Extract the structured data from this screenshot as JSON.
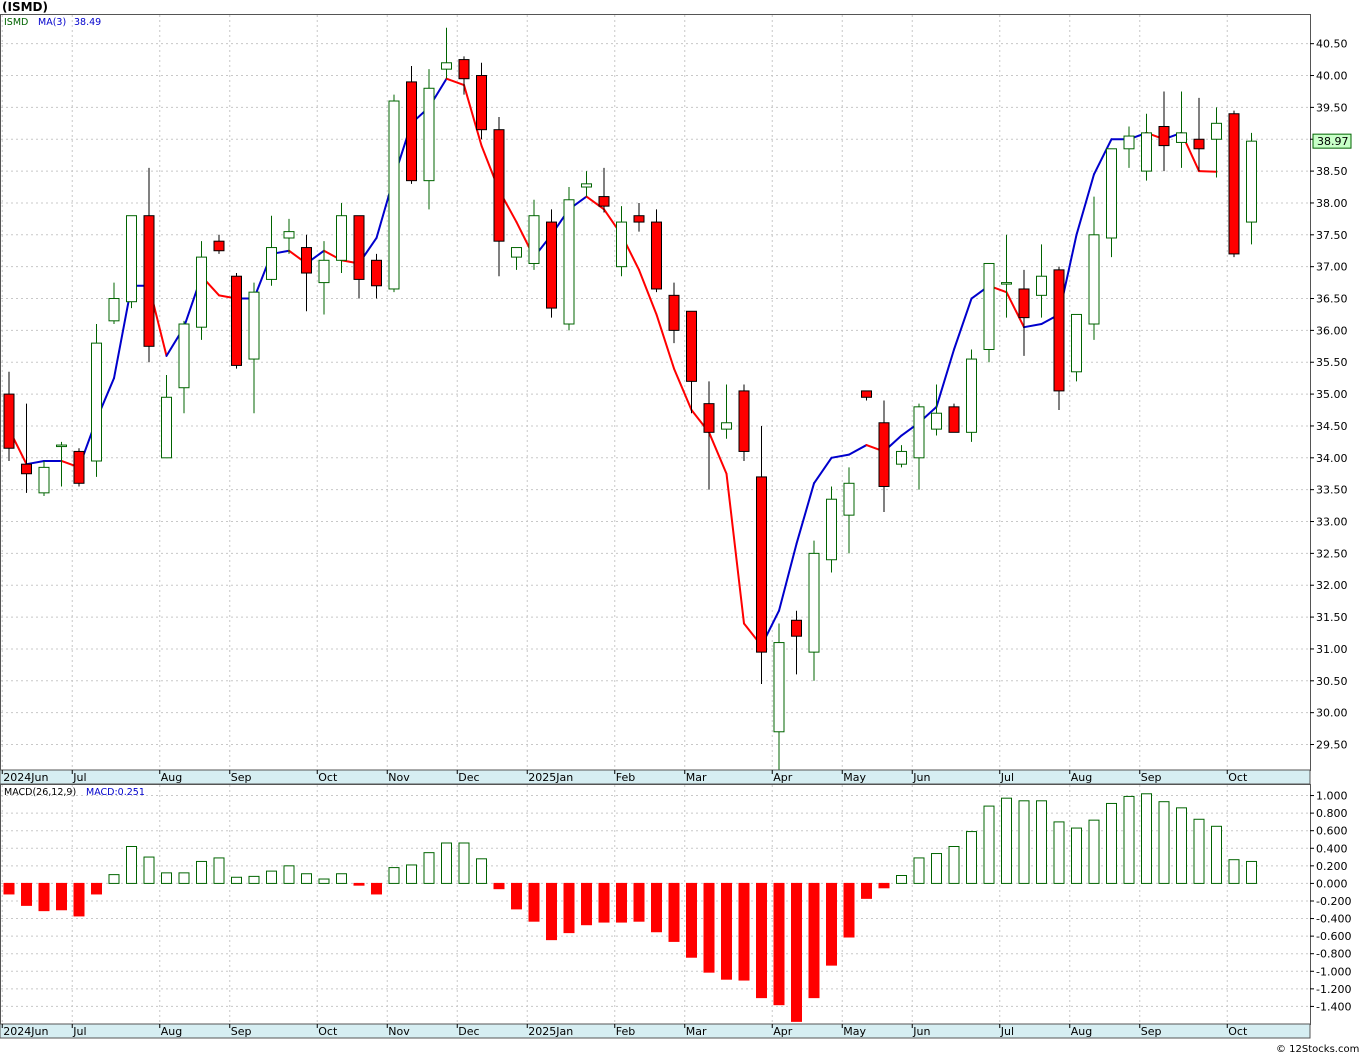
{
  "header": {
    "symbol": "(ISMD)",
    "price_legend": "ISMD",
    "ma_legend": "MA(3)",
    "ma_value": "38.49",
    "macd_legend": "MACD(26,12,9)",
    "macd_value": "MACD:0.251",
    "last_price": "38.97",
    "credit": "© 12Stocks.com"
  },
  "colors": {
    "up_candle": "#006400",
    "down_candle": "#ff0000",
    "ma_up": "#0000cc",
    "ma_down": "#ff0000",
    "axis_band": "#d6eef2",
    "grid": "#c8c8c8",
    "last_price_bg": "#c8ffc8"
  },
  "chart_data": [
    {
      "type": "candlestick",
      "title": "(ISMD)",
      "ylim": [
        29.1,
        40.95
      ],
      "y_ticks": [
        "29.50",
        "30.00",
        "30.50",
        "31.00",
        "31.50",
        "32.00",
        "32.50",
        "33.00",
        "33.50",
        "34.00",
        "34.50",
        "35.00",
        "35.50",
        "36.00",
        "36.50",
        "37.00",
        "37.50",
        "38.00",
        "38.50",
        "39.00",
        "39.50",
        "40.00",
        "40.50"
      ],
      "month_labels": [
        {
          "label": "2024Jun",
          "bar": 0
        },
        {
          "label": "Jul",
          "bar": 4
        },
        {
          "label": "Aug",
          "bar": 9
        },
        {
          "label": "Sep",
          "bar": 13
        },
        {
          "label": "Oct",
          "bar": 18
        },
        {
          "label": "Nov",
          "bar": 22
        },
        {
          "label": "Dec",
          "bar": 26
        },
        {
          "label": "2025Jan",
          "bar": 30
        },
        {
          "label": "Feb",
          "bar": 35
        },
        {
          "label": "Mar",
          "bar": 39
        },
        {
          "label": "Apr",
          "bar": 44
        },
        {
          "label": "May",
          "bar": 48
        },
        {
          "label": "Jun",
          "bar": 52
        },
        {
          "label": "Jul",
          "bar": 57
        },
        {
          "label": "Aug",
          "bar": 61
        },
        {
          "label": "Sep",
          "bar": 65
        },
        {
          "label": "Oct",
          "bar": 70
        }
      ],
      "candles": [
        {
          "o": 35.0,
          "h": 35.35,
          "l": 33.95,
          "c": 34.15
        },
        {
          "o": 33.9,
          "h": 34.85,
          "l": 33.45,
          "c": 33.75
        },
        {
          "o": 33.45,
          "h": 33.95,
          "l": 33.4,
          "c": 33.85
        },
        {
          "o": 34.2,
          "h": 34.25,
          "l": 33.55,
          "c": 34.2
        },
        {
          "o": 34.1,
          "h": 34.15,
          "l": 33.55,
          "c": 33.6
        },
        {
          "o": 33.95,
          "h": 36.1,
          "l": 33.7,
          "c": 35.8
        },
        {
          "o": 36.15,
          "h": 36.75,
          "l": 36.1,
          "c": 36.5
        },
        {
          "o": 36.45,
          "h": 37.8,
          "l": 36.35,
          "c": 37.8
        },
        {
          "o": 37.8,
          "h": 38.55,
          "l": 35.5,
          "c": 35.75
        },
        {
          "o": 34.0,
          "h": 35.3,
          "l": 34.0,
          "c": 34.95
        },
        {
          "o": 35.1,
          "h": 36.15,
          "l": 34.7,
          "c": 36.1
        },
        {
          "o": 36.05,
          "h": 37.4,
          "l": 35.85,
          "c": 37.15
        },
        {
          "o": 37.4,
          "h": 37.5,
          "l": 37.2,
          "c": 37.25
        },
        {
          "o": 36.85,
          "h": 36.9,
          "l": 35.4,
          "c": 35.45
        },
        {
          "o": 35.55,
          "h": 36.75,
          "l": 34.7,
          "c": 36.6
        },
        {
          "o": 36.8,
          "h": 37.8,
          "l": 36.7,
          "c": 37.3
        },
        {
          "o": 37.45,
          "h": 37.75,
          "l": 37.2,
          "c": 37.55
        },
        {
          "o": 37.3,
          "h": 37.5,
          "l": 36.3,
          "c": 36.9
        },
        {
          "o": 36.75,
          "h": 37.4,
          "l": 36.25,
          "c": 37.1
        },
        {
          "o": 37.1,
          "h": 38.0,
          "l": 36.9,
          "c": 37.8
        },
        {
          "o": 37.8,
          "h": 37.8,
          "l": 36.5,
          "c": 36.8
        },
        {
          "o": 37.1,
          "h": 37.2,
          "l": 36.5,
          "c": 36.7
        },
        {
          "o": 36.65,
          "h": 39.7,
          "l": 36.6,
          "c": 39.6
        },
        {
          "o": 39.9,
          "h": 40.15,
          "l": 38.3,
          "c": 38.35
        },
        {
          "o": 38.35,
          "h": 40.1,
          "l": 37.9,
          "c": 39.8
        },
        {
          "o": 40.1,
          "h": 40.75,
          "l": 39.95,
          "c": 40.2
        },
        {
          "o": 40.25,
          "h": 40.3,
          "l": 39.7,
          "c": 39.95
        },
        {
          "o": 40.0,
          "h": 40.2,
          "l": 39.0,
          "c": 39.15
        },
        {
          "o": 39.15,
          "h": 39.35,
          "l": 36.85,
          "c": 37.4
        },
        {
          "o": 37.15,
          "h": 37.3,
          "l": 36.95,
          "c": 37.3
        },
        {
          "o": 37.05,
          "h": 38.05,
          "l": 36.95,
          "c": 37.8
        },
        {
          "o": 37.7,
          "h": 37.9,
          "l": 36.2,
          "c": 36.35
        },
        {
          "o": 36.1,
          "h": 38.25,
          "l": 36.0,
          "c": 38.05
        },
        {
          "o": 38.25,
          "h": 38.5,
          "l": 38.1,
          "c": 38.3
        },
        {
          "o": 38.1,
          "h": 38.55,
          "l": 37.85,
          "c": 37.95
        },
        {
          "o": 37.0,
          "h": 37.95,
          "l": 36.85,
          "c": 37.7
        },
        {
          "o": 37.8,
          "h": 38.0,
          "l": 37.55,
          "c": 37.7
        },
        {
          "o": 37.7,
          "h": 37.9,
          "l": 36.6,
          "c": 36.65
        },
        {
          "o": 36.55,
          "h": 36.75,
          "l": 35.8,
          "c": 36.0
        },
        {
          "o": 36.3,
          "h": 36.3,
          "l": 34.7,
          "c": 35.2
        },
        {
          "o": 34.85,
          "h": 35.2,
          "l": 33.5,
          "c": 34.4
        },
        {
          "o": 34.45,
          "h": 35.15,
          "l": 34.3,
          "c": 34.55
        },
        {
          "o": 35.05,
          "h": 35.15,
          "l": 33.95,
          "c": 34.1
        },
        {
          "o": 33.7,
          "h": 34.5,
          "l": 30.45,
          "c": 30.95
        },
        {
          "o": 29.7,
          "h": 31.4,
          "l": 29.1,
          "c": 31.1
        },
        {
          "o": 31.45,
          "h": 31.6,
          "l": 30.6,
          "c": 31.2
        },
        {
          "o": 30.95,
          "h": 32.7,
          "l": 30.5,
          "c": 32.5
        },
        {
          "o": 32.4,
          "h": 33.55,
          "l": 32.2,
          "c": 33.35
        },
        {
          "o": 33.1,
          "h": 33.85,
          "l": 32.5,
          "c": 33.6
        },
        {
          "o": 35.05,
          "h": 35.05,
          "l": 34.9,
          "c": 34.95
        },
        {
          "o": 34.55,
          "h": 34.9,
          "l": 33.15,
          "c": 33.55
        },
        {
          "o": 33.9,
          "h": 34.2,
          "l": 33.85,
          "c": 34.1
        },
        {
          "o": 34.0,
          "h": 34.85,
          "l": 33.5,
          "c": 34.8
        },
        {
          "o": 34.45,
          "h": 35.15,
          "l": 34.35,
          "c": 34.7
        },
        {
          "o": 34.8,
          "h": 34.85,
          "l": 34.4,
          "c": 34.4
        },
        {
          "o": 34.4,
          "h": 35.7,
          "l": 34.25,
          "c": 35.55
        },
        {
          "o": 35.7,
          "h": 37.05,
          "l": 35.5,
          "c": 37.05
        },
        {
          "o": 36.75,
          "h": 37.5,
          "l": 36.2,
          "c": 36.75
        },
        {
          "o": 36.65,
          "h": 36.95,
          "l": 35.6,
          "c": 36.2
        },
        {
          "o": 36.55,
          "h": 37.35,
          "l": 36.2,
          "c": 36.85
        },
        {
          "o": 36.95,
          "h": 37.0,
          "l": 34.75,
          "c": 35.05
        },
        {
          "o": 35.35,
          "h": 36.25,
          "l": 35.2,
          "c": 36.25
        },
        {
          "o": 36.1,
          "h": 38.1,
          "l": 35.85,
          "c": 37.5
        },
        {
          "o": 37.45,
          "h": 38.85,
          "l": 37.15,
          "c": 38.85
        },
        {
          "o": 38.85,
          "h": 39.2,
          "l": 38.55,
          "c": 39.05
        },
        {
          "o": 38.5,
          "h": 39.4,
          "l": 38.35,
          "c": 39.1
        },
        {
          "o": 39.2,
          "h": 39.75,
          "l": 38.5,
          "c": 38.9
        },
        {
          "o": 38.95,
          "h": 39.75,
          "l": 38.55,
          "c": 39.1
        },
        {
          "o": 39.0,
          "h": 39.65,
          "l": 38.5,
          "c": 38.85
        },
        {
          "o": 39.0,
          "h": 39.5,
          "l": 38.4,
          "c": 39.25
        },
        {
          "o": 39.4,
          "h": 39.45,
          "l": 37.15,
          "c": 37.2
        },
        {
          "o": 37.7,
          "h": 39.1,
          "l": 37.35,
          "c": 38.97
        }
      ],
      "ma3": [
        34.45,
        33.9,
        33.95,
        33.95,
        33.85,
        34.6,
        35.25,
        36.7,
        36.7,
        35.6,
        36.05,
        36.85,
        36.55,
        36.5,
        36.5,
        37.2,
        37.25,
        37.05,
        37.25,
        37.1,
        37.05,
        37.45,
        38.4,
        39.25,
        39.5,
        39.95,
        39.85,
        38.9,
        38.2,
        37.7,
        37.15,
        37.5,
        37.9,
        38.1,
        37.9,
        37.5,
        36.95,
        36.25,
        35.4,
        34.75,
        34.4,
        33.75,
        31.4,
        31.05,
        31.6,
        32.65,
        33.6,
        34.0,
        34.05,
        34.2,
        34.1,
        34.35,
        34.55,
        34.8,
        35.7,
        36.5,
        36.7,
        36.6,
        36.05,
        36.1,
        36.25,
        37.5,
        38.45,
        39.0,
        39.0,
        39.1,
        39.0,
        39.1,
        38.5,
        38.49
      ],
      "last_price": 38.97
    },
    {
      "type": "bar",
      "title": "MACD(26,12,9)",
      "ylim": [
        -1.6,
        1.12
      ],
      "y_ticks": [
        "-1.400",
        "-1.200",
        "-1.000",
        "-0.800",
        "-0.600",
        "-0.400",
        "-0.200",
        "0.000",
        "0.200",
        "0.400",
        "0.600",
        "0.800",
        "1.000"
      ],
      "values": [
        -0.12,
        -0.25,
        -0.31,
        -0.3,
        -0.37,
        -0.12,
        0.1,
        0.42,
        0.3,
        0.12,
        0.12,
        0.25,
        0.29,
        0.07,
        0.08,
        0.14,
        0.2,
        0.11,
        0.05,
        0.11,
        -0.02,
        -0.12,
        0.18,
        0.21,
        0.35,
        0.46,
        0.46,
        0.28,
        -0.06,
        -0.29,
        -0.43,
        -0.64,
        -0.56,
        -0.47,
        -0.44,
        -0.44,
        -0.43,
        -0.55,
        -0.66,
        -0.84,
        -1.01,
        -1.09,
        -1.1,
        -1.3,
        -1.38,
        -1.57,
        -1.3,
        -0.93,
        -0.61,
        -0.17,
        -0.05,
        0.09,
        0.29,
        0.34,
        0.42,
        0.59,
        0.88,
        0.97,
        0.94,
        0.94,
        0.7,
        0.63,
        0.72,
        0.91,
        0.99,
        1.02,
        0.93,
        0.86,
        0.73,
        0.65,
        0.27,
        0.25
      ],
      "macd_value": 0.251
    }
  ]
}
